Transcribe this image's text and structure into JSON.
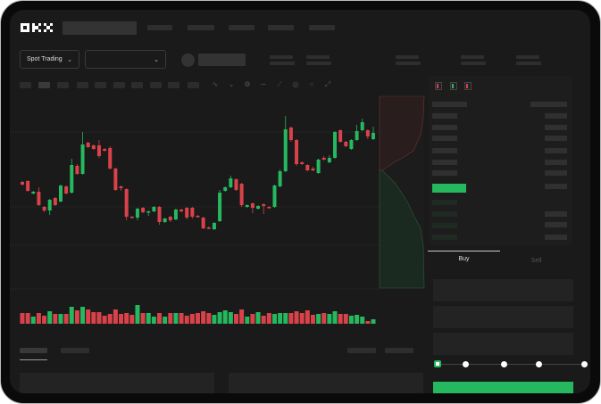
{
  "header": {
    "logo": "OKX"
  },
  "controls": {
    "mode_label": "Spot Trading",
    "pair_selector_value": ""
  },
  "order_form": {
    "buy_tab": "Buy",
    "sell_tab": "Sell",
    "slider_percent": 0
  },
  "colors": {
    "up": "#25b85f",
    "down": "#d9424a",
    "background": "#1a1a1a",
    "accent": "#25b85f"
  },
  "chart_data": {
    "type": "candlestick",
    "candles": [
      [
        96,
        93,
        97,
        92
      ],
      [
        97,
        86,
        98,
        85
      ],
      [
        83,
        85,
        86,
        82
      ],
      [
        85,
        70,
        90,
        69
      ],
      [
        68,
        64,
        69,
        62
      ],
      [
        64,
        76,
        77,
        59
      ],
      [
        78,
        70,
        79,
        69
      ],
      [
        74,
        92,
        93,
        73
      ],
      [
        91,
        83,
        92,
        82
      ],
      [
        84,
        115,
        122,
        83
      ],
      [
        114,
        105,
        116,
        104
      ],
      [
        105,
        138,
        152,
        104
      ],
      [
        140,
        135,
        141,
        134
      ],
      [
        137,
        133,
        138,
        132
      ],
      [
        137,
        125,
        143,
        123
      ],
      [
        133,
        131,
        134,
        130
      ],
      [
        134,
        111,
        136,
        110
      ],
      [
        111,
        87,
        112,
        86
      ],
      [
        91,
        89,
        92,
        86
      ],
      [
        88,
        57,
        89,
        53
      ],
      [
        57,
        56,
        58,
        55
      ],
      [
        56,
        66,
        67,
        53
      ],
      [
        67,
        62,
        68,
        61
      ],
      [
        62,
        63,
        64,
        58
      ],
      [
        63,
        68,
        69,
        62
      ],
      [
        68,
        51,
        69,
        48
      ],
      [
        51,
        55,
        56,
        50
      ],
      [
        57,
        53,
        58,
        51
      ],
      [
        54,
        65,
        66,
        53
      ],
      [
        65,
        63,
        66,
        62
      ],
      [
        67,
        56,
        68,
        54
      ],
      [
        67,
        57,
        68,
        55
      ],
      [
        58,
        57,
        59,
        56
      ],
      [
        56,
        44,
        57,
        43
      ],
      [
        45,
        44,
        46,
        43
      ],
      [
        43,
        50,
        51,
        42
      ],
      [
        52,
        84,
        87,
        51
      ],
      [
        86,
        90,
        91,
        85
      ],
      [
        90,
        100,
        103,
        89
      ],
      [
        99,
        87,
        100,
        86
      ],
      [
        94,
        70,
        95,
        68
      ],
      [
        68,
        70,
        71,
        67
      ],
      [
        72,
        67,
        73,
        61
      ],
      [
        66,
        69,
        70,
        65
      ],
      [
        71,
        69,
        72,
        60
      ],
      [
        68,
        67,
        69,
        66
      ],
      [
        68,
        92,
        93,
        67
      ],
      [
        91,
        108,
        110,
        90
      ],
      [
        108,
        155,
        170,
        107
      ],
      [
        157,
        143,
        158,
        141
      ],
      [
        143,
        116,
        144,
        114
      ],
      [
        118,
        116,
        119,
        115
      ],
      [
        115,
        109,
        116,
        108
      ],
      [
        111,
        109,
        113,
        108
      ],
      [
        106,
        121,
        122,
        105
      ],
      [
        123,
        121,
        125,
        120
      ],
      [
        118,
        123,
        126,
        117
      ],
      [
        123,
        152,
        153,
        122
      ],
      [
        154,
        141,
        155,
        140
      ],
      [
        141,
        136,
        142,
        135
      ],
      [
        133,
        143,
        144,
        132
      ],
      [
        143,
        153,
        160,
        142
      ],
      [
        154,
        163,
        167,
        153
      ],
      [
        154,
        147,
        155,
        144
      ],
      [
        144,
        151,
        158,
        143
      ]
    ],
    "volume": [
      12,
      12,
      8,
      12,
      9,
      14,
      11,
      11,
      11,
      19,
      15,
      19,
      16,
      13,
      13,
      9,
      11,
      16,
      11,
      12,
      10,
      21,
      12,
      12,
      8,
      12,
      8,
      12,
      12,
      12,
      9,
      11,
      12,
      14,
      12,
      10,
      13,
      15,
      13,
      11,
      16,
      8,
      11,
      13,
      9,
      12,
      11,
      12,
      12,
      12,
      14,
      12,
      15,
      10,
      11,
      12,
      11,
      14,
      11,
      11,
      9,
      10,
      8,
      3,
      5
    ],
    "grid": true
  }
}
